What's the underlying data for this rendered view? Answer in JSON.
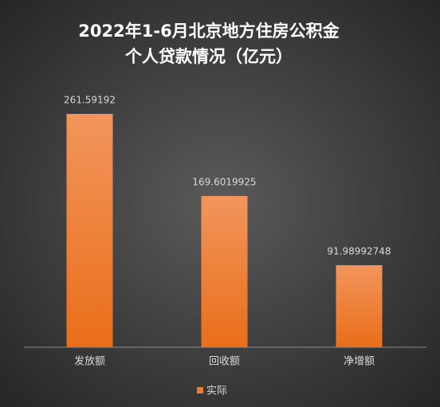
{
  "chart_data": {
    "type": "bar",
    "title": [
      "2022年1-6月北京地方住房公积金",
      "个人贷款情况（亿元）"
    ],
    "categories": [
      "发放额",
      "回收额",
      "净增额"
    ],
    "series": [
      {
        "name": "实际",
        "color": "#ed7d31",
        "values": [
          261.59192,
          169.6019925,
          91.98992748
        ]
      }
    ],
    "legend": "bottom"
  }
}
